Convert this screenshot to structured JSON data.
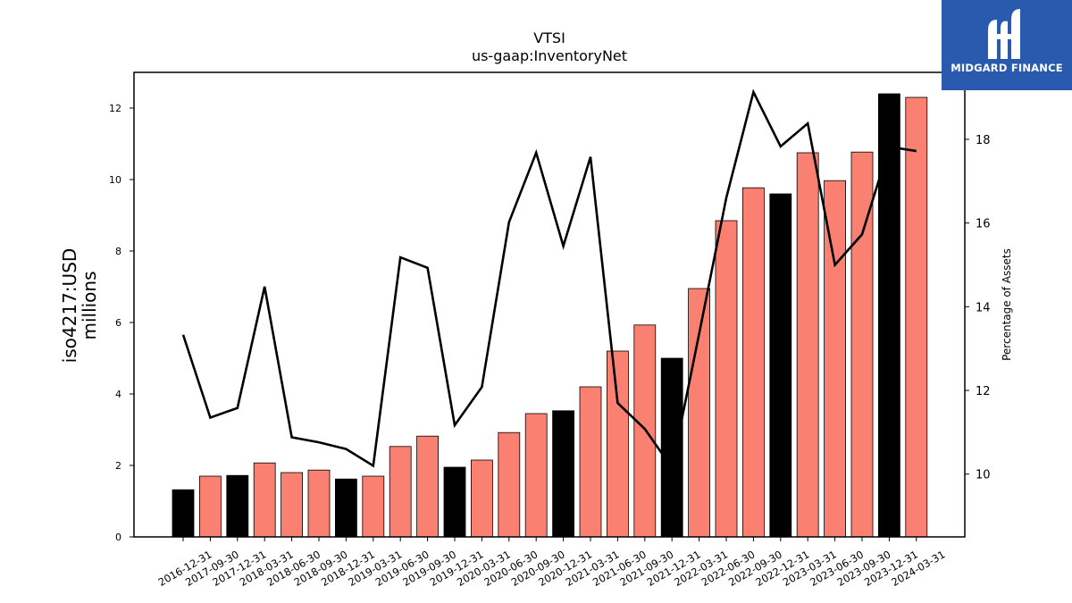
{
  "chart_data": {
    "type": "bar",
    "title": "VTSI",
    "subtitle": "us-gaap:InventoryNet",
    "ylabel_left": "iso4217:USD",
    "ylabel_left_unit": "millions",
    "ylabel_right": "Percentage of Assets",
    "categories": [
      "2016-12-31",
      "2017-09-30",
      "2017-12-31",
      "2018-03-31",
      "2018-06-30",
      "2018-09-30",
      "2018-12-31",
      "2019-03-31",
      "2019-06-30",
      "2019-09-30",
      "2019-12-31",
      "2020-03-31",
      "2020-06-30",
      "2020-09-30",
      "2020-12-31",
      "2021-03-31",
      "2021-06-30",
      "2021-09-30",
      "2021-12-31",
      "2022-03-31",
      "2022-06-30",
      "2022-09-30",
      "2022-12-31",
      "2023-03-31",
      "2023-06-30",
      "2023-09-30",
      "2023-12-31",
      "2024-03-31"
    ],
    "series": [
      {
        "type": "bar",
        "values": [
          1.32,
          1.7,
          1.72,
          2.07,
          1.8,
          1.87,
          1.62,
          1.7,
          2.53,
          2.82,
          1.95,
          2.15,
          2.92,
          3.45,
          3.53,
          4.2,
          5.2,
          5.93,
          5.0,
          6.95,
          8.85,
          9.77,
          9.6,
          10.75,
          9.97,
          10.77,
          12.4,
          12.3
        ],
        "annual": [
          true,
          false,
          true,
          false,
          false,
          false,
          true,
          false,
          false,
          false,
          true,
          false,
          false,
          false,
          true,
          false,
          false,
          false,
          true,
          false,
          false,
          false,
          true,
          false,
          false,
          false,
          true,
          false
        ]
      },
      {
        "type": "line",
        "axis": "right",
        "values": [
          13.33,
          11.35,
          11.58,
          14.48,
          10.88,
          10.76,
          10.6,
          10.2,
          15.18,
          14.93,
          11.17,
          12.08,
          16.02,
          17.68,
          15.45,
          17.58,
          11.7,
          11.08,
          10.15,
          13.35,
          16.6,
          19.13,
          17.83,
          18.38,
          15.0,
          15.73,
          17.82,
          17.72
        ]
      }
    ],
    "ylim_left": [
      0,
      13
    ],
    "yticks_left": [
      0,
      2,
      4,
      6,
      8,
      10,
      12
    ],
    "ylim_right": [
      8.5,
      19.6
    ],
    "yticks_right": [
      10,
      12,
      14,
      16,
      18
    ],
    "colors": {
      "annual_bar": "#000000",
      "quarter_bar": "#fa8072",
      "line": "#000000"
    },
    "grid": false,
    "legend": "none"
  },
  "logo": {
    "text": "MIDGARD FINANCE",
    "background": "#2a5aae"
  }
}
